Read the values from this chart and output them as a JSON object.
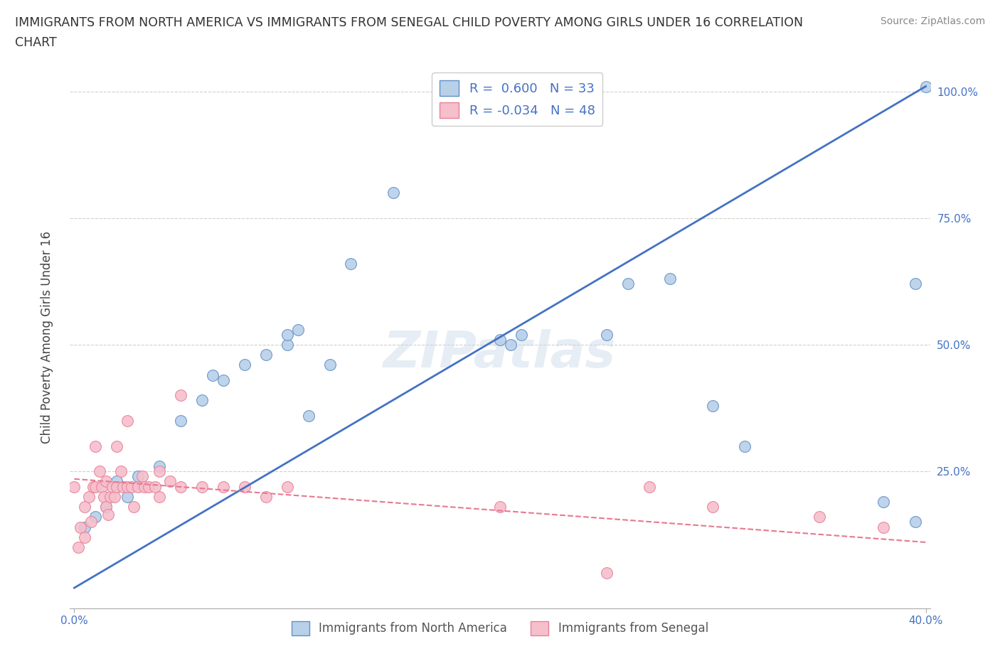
{
  "title_line1": "IMMIGRANTS FROM NORTH AMERICA VS IMMIGRANTS FROM SENEGAL CHILD POVERTY AMONG GIRLS UNDER 16 CORRELATION",
  "title_line2": "CHART",
  "source": "Source: ZipAtlas.com",
  "ylabel": "Child Poverty Among Girls Under 16",
  "blue_R": 0.6,
  "blue_N": 33,
  "pink_R": -0.034,
  "pink_N": 48,
  "blue_color": "#b8d0e8",
  "pink_color": "#f5bfcc",
  "blue_edge_color": "#6090c8",
  "pink_edge_color": "#e88098",
  "blue_line_color": "#4472c4",
  "pink_line_color": "#e87890",
  "legend_label_blue": "Immigrants from North America",
  "legend_label_pink": "Immigrants from Senegal",
  "watermark": "ZIPatlas",
  "blue_scatter_x": [
    0.005,
    0.01,
    0.015,
    0.02,
    0.02,
    0.025,
    0.03,
    0.04,
    0.05,
    0.06,
    0.065,
    0.07,
    0.08,
    0.09,
    0.1,
    0.1,
    0.105,
    0.11,
    0.12,
    0.13,
    0.15,
    0.2,
    0.205,
    0.21,
    0.25,
    0.26,
    0.28,
    0.3,
    0.315,
    0.38,
    0.395,
    0.4,
    0.395
  ],
  "blue_scatter_y": [
    0.14,
    0.16,
    0.18,
    0.22,
    0.23,
    0.2,
    0.24,
    0.26,
    0.35,
    0.39,
    0.44,
    0.43,
    0.46,
    0.48,
    0.5,
    0.52,
    0.53,
    0.36,
    0.46,
    0.66,
    0.8,
    0.51,
    0.5,
    0.52,
    0.52,
    0.62,
    0.63,
    0.38,
    0.3,
    0.19,
    0.15,
    1.01,
    0.62
  ],
  "pink_scatter_x": [
    0.0,
    0.002,
    0.003,
    0.005,
    0.005,
    0.007,
    0.008,
    0.009,
    0.01,
    0.01,
    0.012,
    0.013,
    0.014,
    0.015,
    0.015,
    0.016,
    0.017,
    0.018,
    0.019,
    0.02,
    0.02,
    0.022,
    0.023,
    0.025,
    0.025,
    0.027,
    0.028,
    0.03,
    0.032,
    0.033,
    0.035,
    0.038,
    0.04,
    0.04,
    0.045,
    0.05,
    0.05,
    0.06,
    0.07,
    0.08,
    0.09,
    0.1,
    0.2,
    0.25,
    0.27,
    0.3,
    0.35,
    0.38
  ],
  "pink_scatter_y": [
    0.22,
    0.1,
    0.14,
    0.12,
    0.18,
    0.2,
    0.15,
    0.22,
    0.22,
    0.3,
    0.25,
    0.22,
    0.2,
    0.18,
    0.23,
    0.165,
    0.2,
    0.22,
    0.2,
    0.22,
    0.3,
    0.25,
    0.22,
    0.22,
    0.35,
    0.22,
    0.18,
    0.22,
    0.24,
    0.22,
    0.22,
    0.22,
    0.2,
    0.25,
    0.23,
    0.22,
    0.4,
    0.22,
    0.22,
    0.22,
    0.2,
    0.22,
    0.18,
    0.05,
    0.22,
    0.18,
    0.16,
    0.14
  ],
  "xlim": [
    -0.002,
    0.402
  ],
  "ylim": [
    -0.02,
    1.05
  ],
  "background_color": "#ffffff",
  "grid_color": "#d0d0d0",
  "blue_line_x": [
    0.0,
    0.4
  ],
  "blue_line_y": [
    0.02,
    1.01
  ],
  "pink_line_x": [
    0.0,
    0.4
  ],
  "pink_line_y": [
    0.235,
    0.11
  ]
}
